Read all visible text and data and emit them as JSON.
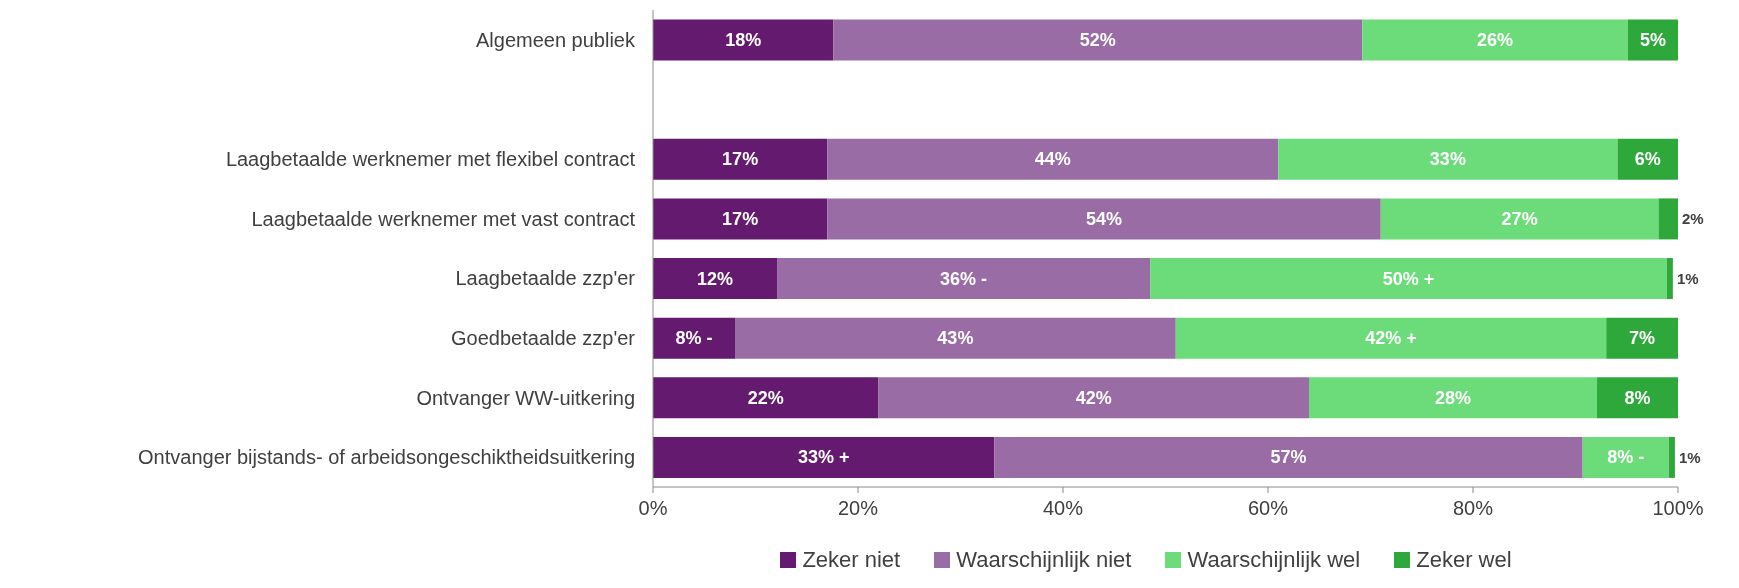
{
  "chart_data": {
    "type": "bar",
    "orientation": "horizontal",
    "stacked": true,
    "categories": [
      "Algemeen publiek",
      null,
      "Laagbetaalde werknemer met flexibel contract",
      "Laagbetaalde werknemer met vast contract",
      "Laagbetaalde zzp'er",
      "Goedbetaalde zzp'er",
      "Ontvanger WW-uitkering",
      "Ontvanger bijstands- of arbeidsongeschiktheidsuitkering"
    ],
    "series": [
      {
        "name": "Zeker niet",
        "color": "#641a6e",
        "values": [
          17.6,
          null,
          17,
          17,
          12.1,
          8,
          22,
          33.3
        ],
        "value_labels": [
          "18%",
          null,
          "17%",
          "17%",
          "12%",
          "8% -",
          "22%",
          "33% +"
        ]
      },
      {
        "name": "Waarschijnlijk niet",
        "color": "#9a6ca6",
        "values": [
          51.6,
          null,
          44,
          54,
          36.4,
          43,
          42,
          57.4
        ],
        "value_labels": [
          "52%",
          null,
          "44%",
          "54%",
          "36% -",
          "43%",
          "42%",
          "57%"
        ]
      },
      {
        "name": "Waarschijnlijk wel",
        "color": "#6cdc7a",
        "values": [
          25.9,
          null,
          33.1,
          27.1,
          50.4,
          42,
          28.1,
          8.4
        ],
        "value_labels": [
          "26%",
          null,
          "33%",
          "27%",
          "50% +",
          "42% +",
          "28%",
          "8% -"
        ]
      },
      {
        "name": "Zeker wel",
        "color": "#2ea83a",
        "values": [
          4.9,
          null,
          5.9,
          1.9,
          0.6,
          7,
          7.9,
          0.6
        ],
        "value_labels": [
          "5%",
          null,
          "6%",
          "2%",
          "1%",
          "7%",
          "8%",
          "1%"
        ]
      }
    ],
    "xlim": [
      0,
      100
    ],
    "xticks": [
      {
        "value": 0,
        "label": "0%"
      },
      {
        "value": 20,
        "label": "20%"
      },
      {
        "value": 40,
        "label": "40%"
      },
      {
        "value": 60,
        "label": "60%"
      },
      {
        "value": 80,
        "label": "80%"
      },
      {
        "value": 100,
        "label": "100%"
      }
    ],
    "grid": false,
    "legend": "bottom"
  }
}
